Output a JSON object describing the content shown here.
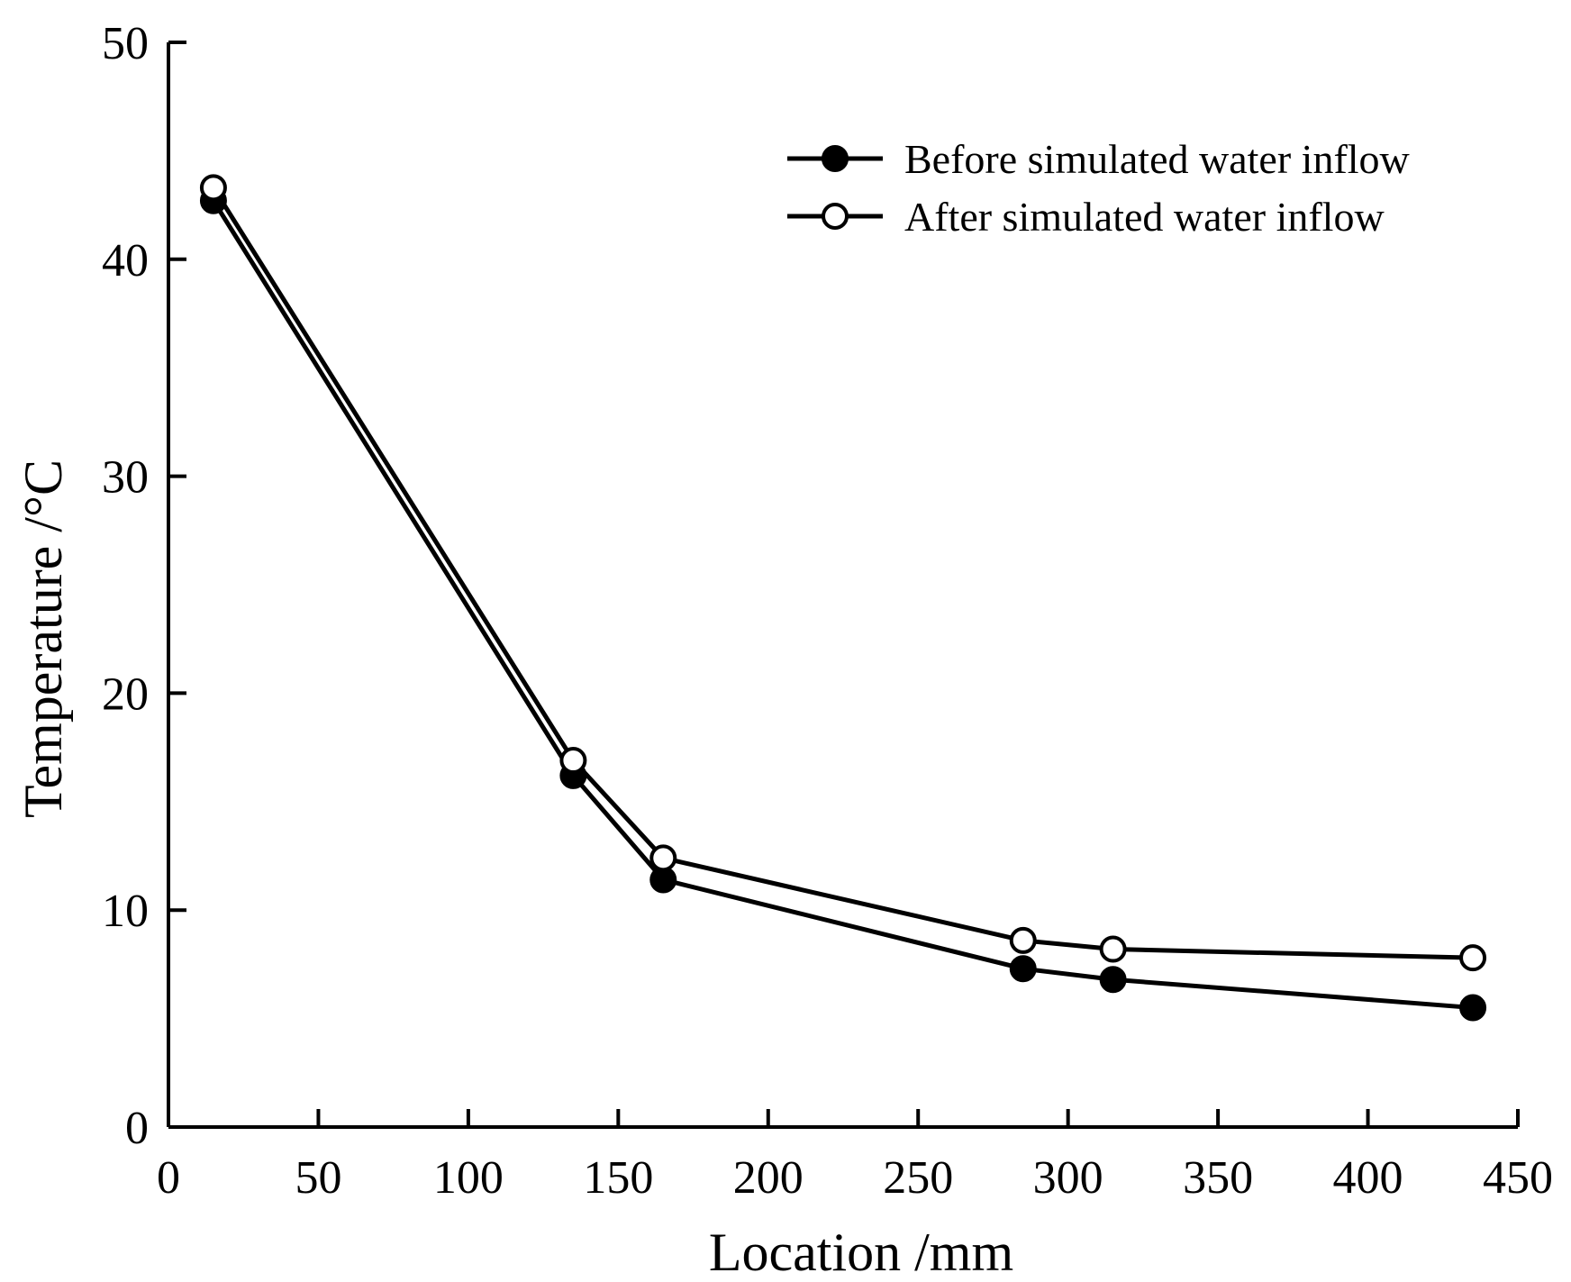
{
  "chart_data": {
    "type": "line",
    "title": "",
    "xlabel": "Location /mm",
    "ylabel": "Temperature /°C",
    "xlim": [
      0,
      450
    ],
    "ylim": [
      0,
      50
    ],
    "xticks": [
      0,
      50,
      100,
      150,
      200,
      250,
      300,
      350,
      400,
      450
    ],
    "yticks": [
      0,
      10,
      20,
      30,
      40,
      50
    ],
    "xtick_labels": [
      "0",
      "50",
      "100",
      "150",
      "200",
      "250",
      "300",
      "350",
      "400",
      "450"
    ],
    "ytick_labels": [
      "0",
      "10",
      "20",
      "30",
      "40",
      "50"
    ],
    "grid": false,
    "legend_position": "top-right",
    "series": [
      {
        "name": "Before simulated water inflow",
        "marker": "filled-circle",
        "color": "#000000",
        "x": [
          15,
          135,
          165,
          285,
          315,
          435
        ],
        "y": [
          42.7,
          16.2,
          11.4,
          7.3,
          6.8,
          5.5
        ]
      },
      {
        "name": "After simulated water inflow",
        "marker": "open-circle",
        "color": "#000000",
        "x": [
          15,
          135,
          165,
          285,
          315,
          435
        ],
        "y": [
          43.3,
          16.9,
          12.4,
          8.6,
          8.2,
          7.8
        ]
      }
    ]
  }
}
